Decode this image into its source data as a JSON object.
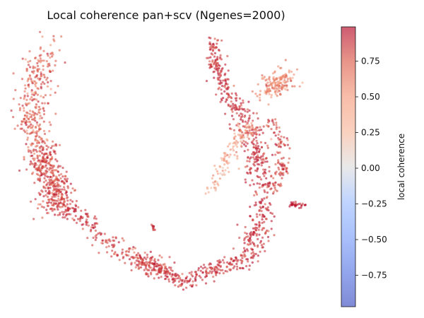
{
  "chart_data": {
    "type": "scatter",
    "title": "Local coherence pan+scv (Ngenes=2000)",
    "xlabel": "",
    "ylabel": "",
    "axes_visible": false,
    "n_points": 2000,
    "point_color_value_typical": 0.75,
    "clusters": [
      {
        "shape": "left arm, upper",
        "x_range": [
          0.06,
          0.2
        ],
        "y_range": [
          0.6,
          0.85
        ],
        "mean_coherence": 0.75
      },
      {
        "shape": "left arm, dense lobe",
        "x_range": [
          0.07,
          0.2
        ],
        "y_range": [
          0.42,
          0.58
        ],
        "mean_coherence": 0.82
      },
      {
        "shape": "bottom arc",
        "x_range": [
          0.18,
          0.62
        ],
        "y_range": [
          0.05,
          0.35
        ],
        "mean_coherence": 0.85
      },
      {
        "shape": "right arm, main",
        "x_range": [
          0.48,
          0.7
        ],
        "y_range": [
          0.35,
          0.85
        ],
        "mean_coherence": 0.88
      },
      {
        "shape": "right arm, upper-right lobe",
        "x_range": [
          0.6,
          0.7
        ],
        "y_range": [
          0.7,
          0.82
        ],
        "mean_coherence": 0.55
      },
      {
        "shape": "right arm, inner light region",
        "x_range": [
          0.48,
          0.55
        ],
        "y_range": [
          0.45,
          0.6
        ],
        "mean_coherence": 0.35
      },
      {
        "shape": "small right tail",
        "x_range": [
          0.68,
          0.73
        ],
        "y_range": [
          0.38,
          0.42
        ],
        "mean_coherence": 0.9
      }
    ],
    "colorbar": {
      "label": "local coherence",
      "colormap": "coolwarm",
      "vmin": -0.97,
      "vmax": 0.99,
      "ticks": [
        -0.75,
        -0.5,
        -0.25,
        0.0,
        0.25,
        0.5,
        0.75
      ],
      "tick_labels": [
        "−0.75",
        "−0.50",
        "−0.25",
        "0.00",
        "0.25",
        "0.50",
        "0.75"
      ]
    },
    "colors": {
      "low": "#3b4cc0",
      "mid": "#dddddd",
      "high": "#b40426",
      "point_alpha": 0.6
    }
  }
}
